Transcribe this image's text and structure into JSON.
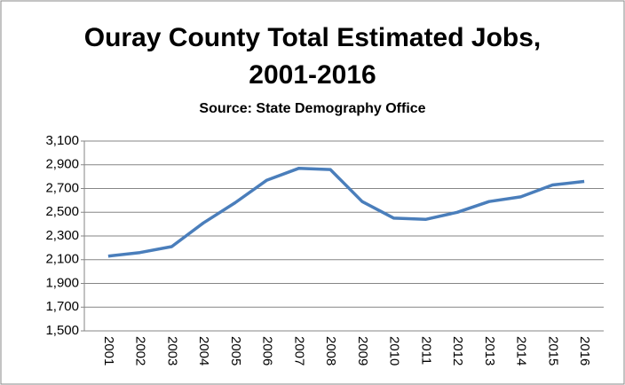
{
  "chart_data": {
    "type": "line",
    "title": "Ouray County Total Estimated Jobs, 2001-2016",
    "subtitle": "Source: State Demography Office",
    "categories": [
      "2001",
      "2002",
      "2003",
      "2004",
      "2005",
      "2006",
      "2007",
      "2008",
      "2009",
      "2010",
      "2011",
      "2012",
      "2013",
      "2014",
      "2015",
      "2016"
    ],
    "values": [
      2130,
      2160,
      2210,
      2410,
      2580,
      2770,
      2870,
      2860,
      2590,
      2450,
      2440,
      2500,
      2590,
      2630,
      2730,
      2760
    ],
    "color": "#4a7ebb",
    "ylim": [
      1500,
      3100
    ],
    "yticks": [
      {
        "value": 1500,
        "label": "1,500"
      },
      {
        "value": 1700,
        "label": "1,700"
      },
      {
        "value": 1900,
        "label": "1,900"
      },
      {
        "value": 2100,
        "label": "2,100"
      },
      {
        "value": 2300,
        "label": "2,300"
      },
      {
        "value": 2500,
        "label": "2,500"
      },
      {
        "value": 2700,
        "label": "2,700"
      },
      {
        "value": 2900,
        "label": "2,900"
      },
      {
        "value": 3100,
        "label": "3,100"
      }
    ],
    "grid": true
  }
}
